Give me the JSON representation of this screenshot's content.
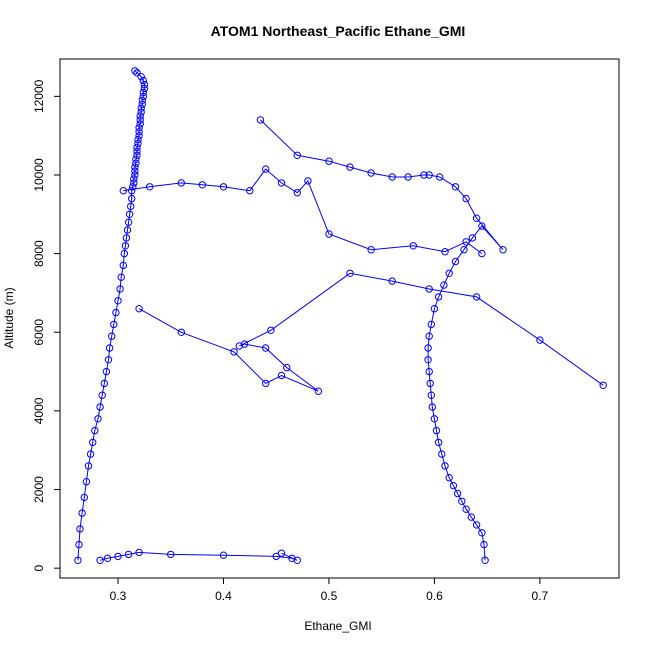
{
  "chart_data": {
    "type": "scatter",
    "title": "ATOM1 Northeast_Pacific Ethane_GMI",
    "xlabel": "Ethane_GMI",
    "ylabel": "Altitude (m)",
    "xlim": [
      0.245,
      0.775
    ],
    "ylim": [
      -250,
      12950
    ],
    "x_ticks": [
      0.3,
      0.4,
      0.5,
      0.6,
      0.7
    ],
    "x_tick_labels": [
      "0.3",
      "0.4",
      "0.5",
      "0.6",
      "0.7"
    ],
    "y_ticks": [
      0,
      2000,
      4000,
      6000,
      8000,
      10000,
      12000
    ],
    "y_tick_labels": [
      "0",
      "2000",
      "4000",
      "6000",
      "8000",
      "10000",
      "12000"
    ],
    "grid": false,
    "legend": "none",
    "color": "#0000ff",
    "marker": "open-circle",
    "connected": true,
    "series": [
      {
        "x": [
          0.262,
          0.263,
          0.264,
          0.266,
          0.268,
          0.27,
          0.272,
          0.274,
          0.276,
          0.278,
          0.281,
          0.283,
          0.285,
          0.287,
          0.289,
          0.291,
          0.292,
          0.294,
          0.296,
          0.298,
          0.3,
          0.302,
          0.303,
          0.305,
          0.306,
          0.307,
          0.308,
          0.309,
          0.31,
          0.311,
          0.312,
          0.313,
          0.313,
          0.314,
          0.315,
          0.315,
          0.316,
          0.316,
          0.316,
          0.317,
          0.317,
          0.318,
          0.318,
          0.318,
          0.319,
          0.319,
          0.32,
          0.32,
          0.32,
          0.321,
          0.321,
          0.321,
          0.322,
          0.322,
          0.323,
          0.323,
          0.324,
          0.324,
          0.325,
          0.325,
          0.324,
          0.322,
          0.318,
          0.316
        ],
        "y": [
          200,
          600,
          1000,
          1400,
          1800,
          2200,
          2600,
          2900,
          3200,
          3500,
          3800,
          4100,
          4400,
          4700,
          5000,
          5300,
          5600,
          5900,
          6200,
          6500,
          6800,
          7100,
          7400,
          7700,
          8000,
          8200,
          8400,
          8600,
          8800,
          9000,
          9200,
          9400,
          9600,
          9700,
          9800,
          9900,
          10000,
          10100,
          10200,
          10300,
          10400,
          10500,
          10600,
          10700,
          10800,
          10900,
          11000,
          11100,
          11200,
          11300,
          11400,
          11500,
          11600,
          11700,
          11800,
          11900,
          12000,
          12100,
          12200,
          12300,
          12400,
          12500,
          12600,
          12650
        ]
      },
      {
        "x": [
          0.648,
          0.647,
          0.645,
          0.64,
          0.635,
          0.63,
          0.626,
          0.622,
          0.618,
          0.614,
          0.61,
          0.607,
          0.604,
          0.602,
          0.6,
          0.598,
          0.597,
          0.596,
          0.595,
          0.594,
          0.594,
          0.595,
          0.597,
          0.6,
          0.604,
          0.609,
          0.614,
          0.62,
          0.628,
          0.636,
          0.645,
          0.665,
          0.64,
          0.63,
          0.62,
          0.605,
          0.595,
          0.59,
          0.575,
          0.56,
          0.54,
          0.52,
          0.5,
          0.47,
          0.435
        ],
        "y": [
          200,
          600,
          900,
          1100,
          1300,
          1500,
          1700,
          1900,
          2100,
          2300,
          2600,
          2900,
          3200,
          3500,
          3800,
          4100,
          4400,
          4700,
          5000,
          5300,
          5600,
          5900,
          6200,
          6600,
          6900,
          7200,
          7500,
          7800,
          8100,
          8400,
          8700,
          8100,
          8900,
          9400,
          9700,
          9950,
          10000,
          10000,
          9950,
          9950,
          10050,
          10200,
          10350,
          10500,
          11400
        ]
      },
      {
        "x": [
          0.283,
          0.29,
          0.3,
          0.31,
          0.32,
          0.35,
          0.4,
          0.45,
          0.465,
          0.47,
          0.455
        ],
        "y": [
          200,
          250,
          300,
          350,
          400,
          350,
          330,
          300,
          250,
          200,
          380
        ]
      },
      {
        "x": [
          0.32,
          0.36,
          0.41,
          0.44,
          0.455,
          0.49,
          0.46,
          0.44,
          0.42,
          0.415,
          0.445,
          0.52,
          0.56,
          0.595,
          0.64,
          0.7,
          0.76
        ],
        "y": [
          6600,
          6000,
          5500,
          4700,
          4900,
          4500,
          5100,
          5600,
          5700,
          5650,
          6050,
          7500,
          7300,
          7100,
          6900,
          5800,
          4650
        ]
      },
      {
        "x": [
          0.305,
          0.33,
          0.36,
          0.38,
          0.4,
          0.425,
          0.44,
          0.455,
          0.47,
          0.48,
          0.5,
          0.54,
          0.58,
          0.61,
          0.63,
          0.645
        ],
        "y": [
          9600,
          9700,
          9800,
          9750,
          9700,
          9600,
          10150,
          9800,
          9550,
          9850,
          8500,
          8100,
          8200,
          8050,
          8300,
          8000
        ]
      }
    ]
  }
}
